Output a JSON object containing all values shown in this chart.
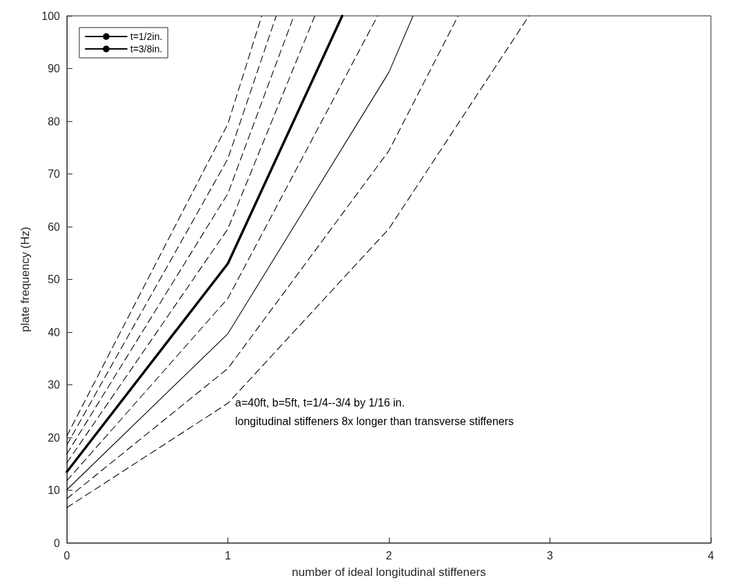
{
  "chart_data": {
    "type": "line",
    "xlabel": "number of ideal longitudinal stiffeners",
    "ylabel": "plate frequency (Hz)",
    "xlim": [
      0,
      4
    ],
    "xticks": [
      0,
      1,
      2,
      3,
      4
    ],
    "ylim": [
      0,
      100
    ],
    "yticks": [
      0,
      10,
      20,
      30,
      40,
      50,
      60,
      70,
      80,
      90,
      100
    ],
    "grid": false,
    "legend": "top left",
    "marker": "none",
    "annotations": [
      "a=40ft, b=5ft, t=1/4--3/4 by 1/16 in.",
      "longitudinal stiffeners 8x longer than transverse stiffeners"
    ],
    "series": [
      {
        "name": "t=1/2in.",
        "color": "#000000",
        "line_style": "solid",
        "x": [
          0,
          1,
          1.71
        ],
        "values": [
          13.5,
          53,
          100
        ]
      },
      {
        "name": "t=3/8in.",
        "color": "#000000",
        "line_style": "solid",
        "x": [
          0,
          1,
          2,
          2.15
        ],
        "values": [
          10.1,
          39.7,
          89.3,
          100
        ]
      },
      {
        "color": "#000000",
        "line_style": "dashed",
        "x": [
          0,
          1,
          2,
          2.87
        ],
        "values": [
          6.7,
          26.5,
          59.6,
          100
        ]
      },
      {
        "color": "#000000",
        "line_style": "dashed",
        "x": [
          0,
          1,
          2,
          2.43
        ],
        "values": [
          8.4,
          33.1,
          74.4,
          100
        ]
      },
      {
        "color": "#000000",
        "line_style": "dashed",
        "x": [
          0,
          1,
          1.93
        ],
        "values": [
          11.8,
          46.4,
          100
        ]
      },
      {
        "color": "#000000",
        "line_style": "dashed",
        "x": [
          0,
          1,
          1.54
        ],
        "values": [
          15.2,
          59.6,
          100
        ]
      },
      {
        "color": "#000000",
        "line_style": "dashed",
        "x": [
          0,
          1,
          1.41
        ],
        "values": [
          16.9,
          66.3,
          100
        ]
      },
      {
        "color": "#000000",
        "line_style": "dashed",
        "x": [
          0,
          1,
          1.3
        ],
        "values": [
          18.6,
          72.9,
          100
        ]
      },
      {
        "color": "#000000",
        "line_style": "dashed",
        "x": [
          0,
          1,
          1.21
        ],
        "values": [
          20.3,
          79.5,
          100
        ]
      }
    ]
  }
}
